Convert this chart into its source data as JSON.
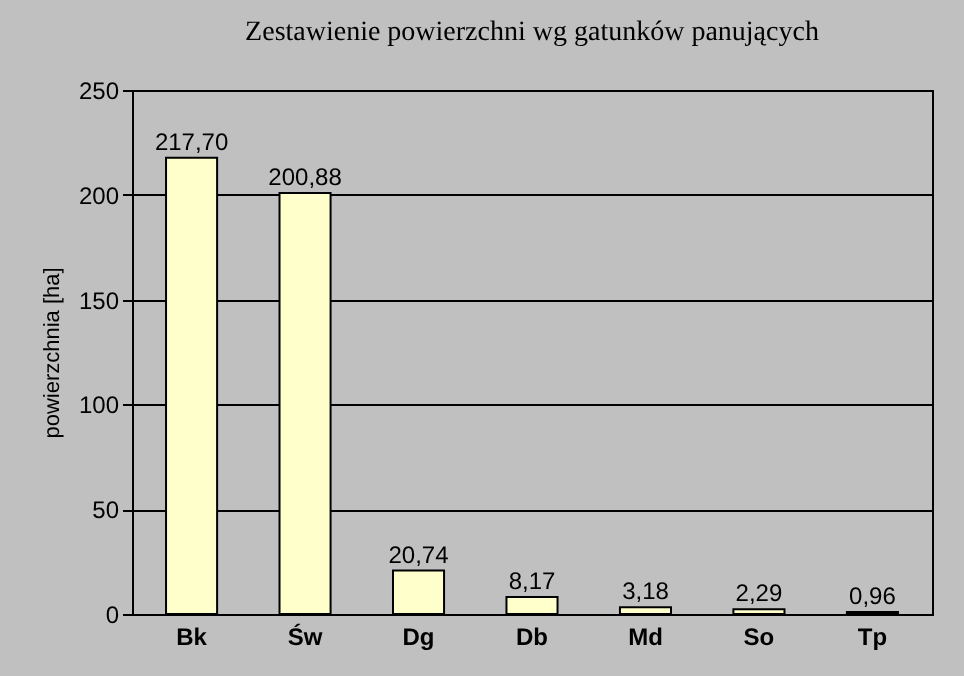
{
  "chart_data": {
    "type": "bar",
    "title": "Zestawienie powierzchni wg gatunków panujących",
    "ylabel": "powierzchnia [ha]",
    "categories": [
      "Bk",
      "Św",
      "Dg",
      "Db",
      "Md",
      "So",
      "Tp"
    ],
    "values": [
      217.7,
      200.88,
      20.74,
      8.17,
      3.18,
      2.29,
      0.96
    ],
    "value_labels": [
      "217,70",
      "200,88",
      "20,74",
      "8,17",
      "3,18",
      "2,29",
      "0,96"
    ],
    "color": "#ffffcc",
    "ylim": [
      0,
      250
    ],
    "yticks": [
      0,
      50,
      100,
      150,
      200,
      250
    ],
    "grid": "y"
  }
}
